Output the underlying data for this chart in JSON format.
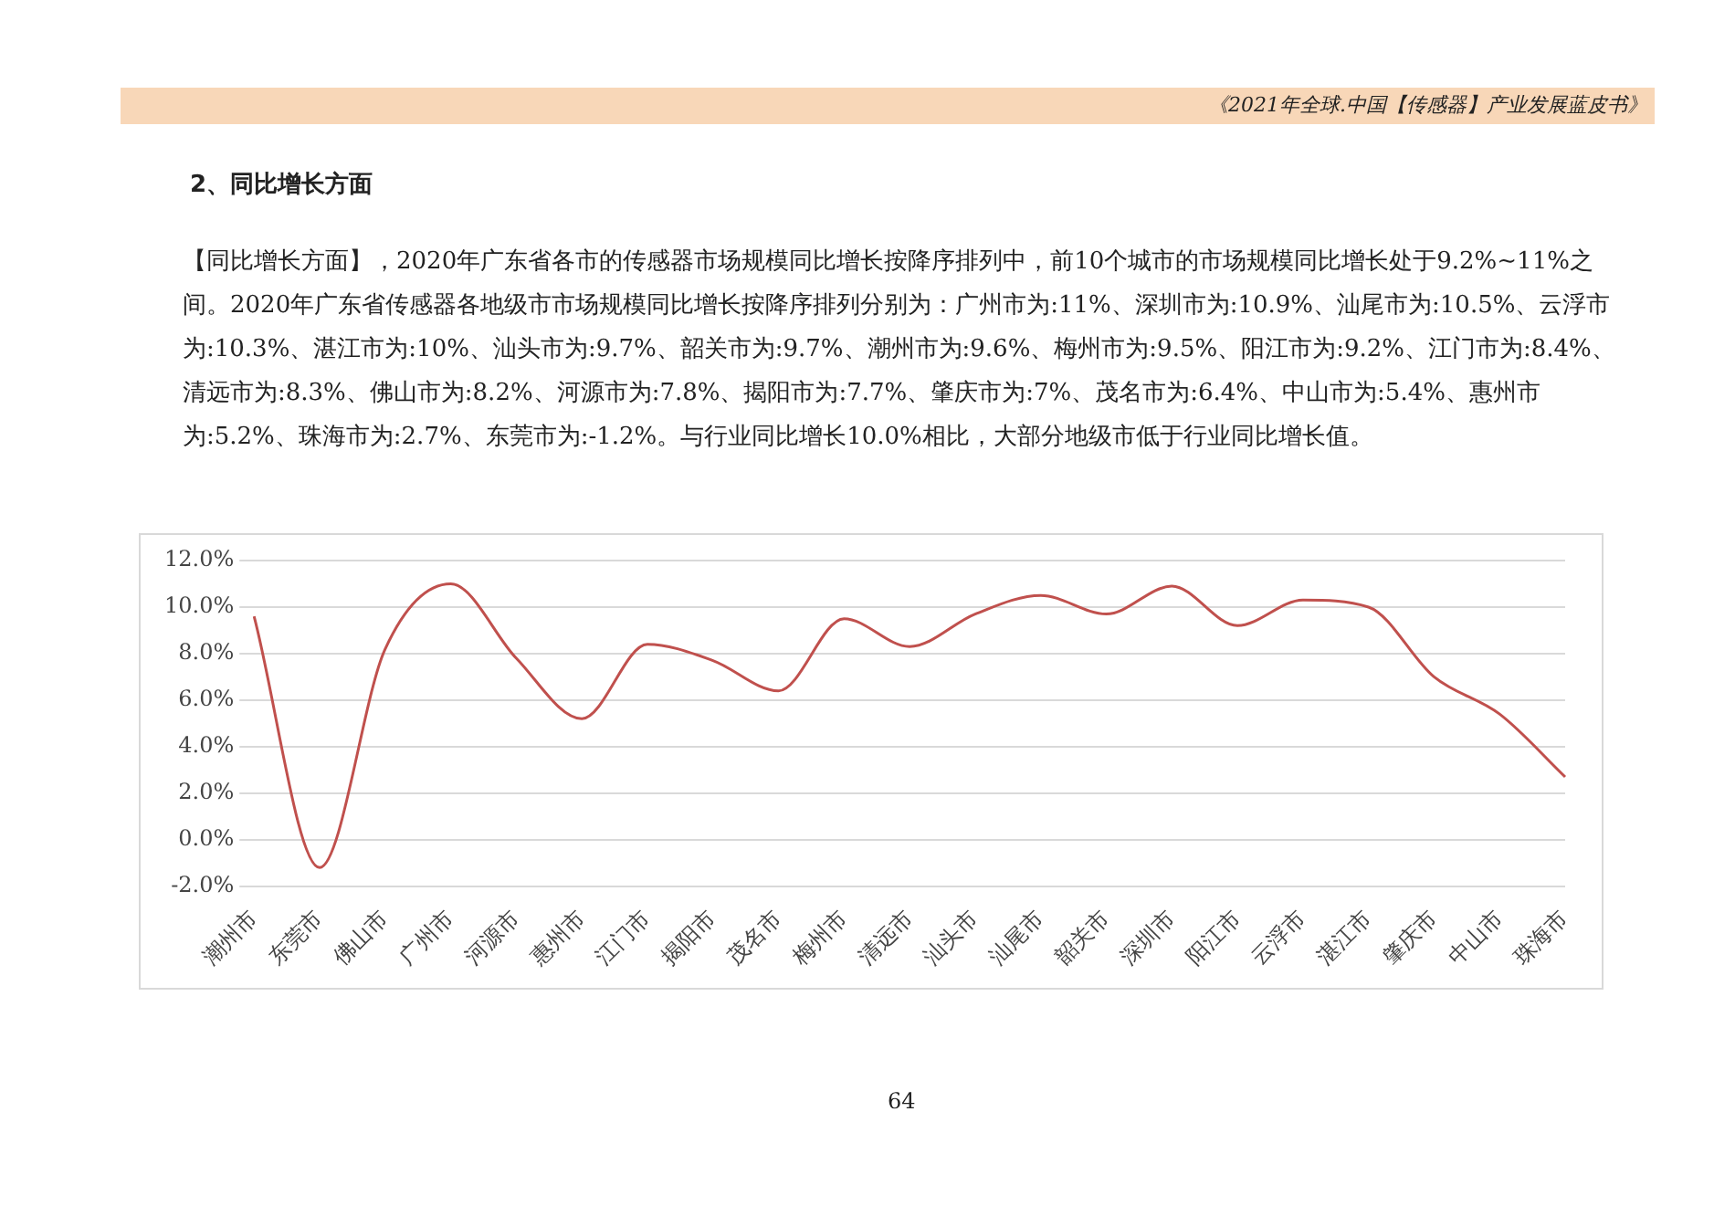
{
  "chart_data": {
    "type": "line",
    "title": "2、同比增长方面",
    "subtitle": "【同比增长方面】，2020年广东省各市的传感器市场规模同比增长按降序排列中，前10个城市的市场规模同比增长处于9.2%~11%之间。2020年广东省传感器各地级市市场规模同比增长按降序排列分别为：广州市为:11%、深圳市为:10.9%、汕尾市为:10.5%、云浮市为:10.3%、湛江市为:10%、汕头市为:9.7%、韶关市为:9.7%、潮州市为:9.6%、梅州市为:9.5%、阳江市为:9.2%、江门市为:8.4%、清远市为:8.3%、佛山市为:8.2%、河源市为:7.8%、揭阳市为:7.7%、肇庆市为:7%、茂名市为:6.4%、中山市为:5.4%、惠州市为:5.2%、珠海市为:2.7%、东莞市为:-1.2%。与行业同比增长10.0%相比，大部分地级市低于行业同比增长值。",
    "categories": [
      "潮州市",
      "东莞市",
      "佛山市",
      "广州市",
      "河源市",
      "惠州市",
      "江门市",
      "揭阳市",
      "茂名市",
      "梅州市",
      "清远市",
      "汕头市",
      "汕尾市",
      "韶关市",
      "深圳市",
      "阳江市",
      "云浮市",
      "湛江市",
      "肇庆市",
      "中山市",
      "珠海市"
    ],
    "series": [
      {
        "color": "#c0504d",
        "values": [
          9.6,
          -1.2,
          8.2,
          11,
          7.8,
          5.2,
          8.4,
          7.7,
          6.4,
          9.5,
          8.3,
          9.7,
          10.5,
          9.7,
          10.9,
          9.2,
          10.3,
          10,
          7,
          5.4,
          2.7
        ]
      }
    ],
    "ylim": [
      -2,
      12
    ],
    "yticks": [
      {
        "value": -2,
        "label": "-2.0%"
      },
      {
        "value": 0,
        "label": "0.0%"
      },
      {
        "value": 2,
        "label": "2.0%"
      },
      {
        "value": 4,
        "label": "4.0%"
      },
      {
        "value": 6,
        "label": "6.0%"
      },
      {
        "value": 8,
        "label": "8.0%"
      },
      {
        "value": 10,
        "label": "10.0%"
      },
      {
        "value": 12,
        "label": "12.0%"
      }
    ],
    "grid": "y",
    "legend": false,
    "marker": "none",
    "line_style": "solid",
    "annotations": [
      "《2021年全球.中国【传感器】产业发展蓝皮书》",
      "64"
    ]
  }
}
